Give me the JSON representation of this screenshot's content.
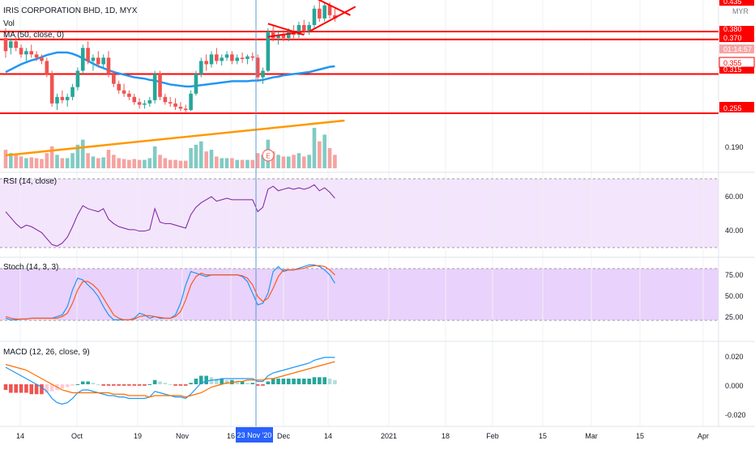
{
  "header": {
    "symbol": "IRIS CORPORATION BHD, 1D, MYX",
    "vol_label": "Vol",
    "ma_label": "MA (50, close, 0)",
    "rsi_label": "RSI (14, close)",
    "stoch_label": "Stoch (14, 3, 3)",
    "macd_label": "MACD (12, 26, close, 9)",
    "currency": "MYR"
  },
  "axis": {
    "price_labels": [
      "0.435",
      "0.380",
      "0.370",
      "01:14:57",
      "0.355",
      "0.315",
      "0.255",
      "0.190"
    ],
    "rsi_labels": [
      "60.00",
      "40.00"
    ],
    "stoch_labels": [
      "75.00",
      "50.00",
      "25.00"
    ],
    "macd_labels": [
      "0.020",
      "0.000",
      "-0.020"
    ],
    "time_labels": [
      "14",
      "Oct",
      "19",
      "Nov",
      "16",
      "Dec",
      "14",
      "2021",
      "18",
      "Feb",
      "15",
      "Mar",
      "15",
      "Apr"
    ],
    "crosshair_date": "23 Nov '20",
    "earnings_marker": "E"
  },
  "colors": {
    "up": "#26a69a",
    "down": "#ef5350",
    "vol_up": "#80cbc4",
    "vol_down": "#f5a3a1",
    "ma": "#2196f3",
    "trend": "#ff9800",
    "hline": "#ff0000",
    "rsi": "#7b1fa2",
    "stoch_k": "#2196f3",
    "stoch_d": "#ff5722",
    "crosshair": "#5b9bd5"
  },
  "chart_data": [
    {
      "type": "candlestick",
      "series": [
        {
          "name": "IRIS CORPORATION BHD",
          "ohlc": [
            [
              0.37,
              0.385,
              0.34,
              0.35
            ],
            [
              0.355,
              0.37,
              0.345,
              0.365
            ],
            [
              0.365,
              0.372,
              0.35,
              0.355
            ],
            [
              0.355,
              0.36,
              0.34,
              0.345
            ],
            [
              0.345,
              0.355,
              0.335,
              0.35
            ],
            [
              0.35,
              0.36,
              0.34,
              0.345
            ],
            [
              0.345,
              0.35,
              0.335,
              0.34
            ],
            [
              0.34,
              0.345,
              0.33,
              0.335
            ],
            [
              0.335,
              0.34,
              0.31,
              0.315
            ],
            [
              0.315,
              0.32,
              0.265,
              0.27
            ],
            [
              0.27,
              0.285,
              0.26,
              0.28
            ],
            [
              0.28,
              0.29,
              0.27,
              0.275
            ],
            [
              0.275,
              0.285,
              0.265,
              0.28
            ],
            [
              0.28,
              0.3,
              0.275,
              0.295
            ],
            [
              0.295,
              0.325,
              0.29,
              0.32
            ],
            [
              0.32,
              0.36,
              0.315,
              0.355
            ],
            [
              0.355,
              0.365,
              0.33,
              0.335
            ],
            [
              0.335,
              0.345,
              0.32,
              0.34
            ],
            [
              0.34,
              0.35,
              0.325,
              0.33
            ],
            [
              0.33,
              0.345,
              0.325,
              0.34
            ],
            [
              0.34,
              0.35,
              0.31,
              0.315
            ],
            [
              0.315,
              0.32,
              0.295,
              0.3
            ],
            [
              0.3,
              0.305,
              0.285,
              0.29
            ],
            [
              0.29,
              0.3,
              0.28,
              0.285
            ],
            [
              0.285,
              0.29,
              0.275,
              0.28
            ],
            [
              0.28,
              0.285,
              0.268,
              0.272
            ],
            [
              0.272,
              0.278,
              0.262,
              0.268
            ],
            [
              0.268,
              0.275,
              0.262,
              0.27
            ],
            [
              0.27,
              0.28,
              0.265,
              0.275
            ],
            [
              0.275,
              0.32,
              0.27,
              0.315
            ],
            [
              0.315,
              0.32,
              0.275,
              0.28
            ],
            [
              0.28,
              0.285,
              0.268,
              0.272
            ],
            [
              0.272,
              0.28,
              0.265,
              0.27
            ],
            [
              0.27,
              0.278,
              0.26,
              0.265
            ],
            [
              0.265,
              0.272,
              0.258,
              0.262
            ],
            [
              0.262,
              0.268,
              0.255,
              0.26
            ],
            [
              0.26,
              0.29,
              0.258,
              0.285
            ],
            [
              0.285,
              0.32,
              0.282,
              0.315
            ],
            [
              0.315,
              0.34,
              0.31,
              0.335
            ],
            [
              0.335,
              0.345,
              0.32,
              0.33
            ],
            [
              0.33,
              0.35,
              0.325,
              0.345
            ],
            [
              0.345,
              0.355,
              0.33,
              0.335
            ],
            [
              0.335,
              0.345,
              0.328,
              0.34
            ],
            [
              0.34,
              0.35,
              0.335,
              0.345
            ],
            [
              0.345,
              0.35,
              0.33,
              0.335
            ],
            [
              0.335,
              0.345,
              0.33,
              0.34
            ],
            [
              0.34,
              0.348,
              0.332,
              0.338
            ],
            [
              0.338,
              0.345,
              0.33,
              0.342
            ],
            [
              0.342,
              0.348,
              0.335,
              0.34
            ],
            [
              0.34,
              0.345,
              0.305,
              0.31
            ],
            [
              0.31,
              0.325,
              0.3,
              0.32
            ],
            [
              0.32,
              0.385,
              0.318,
              0.38
            ],
            [
              0.38,
              0.39,
              0.365,
              0.37
            ],
            [
              0.37,
              0.38,
              0.36,
              0.375
            ],
            [
              0.375,
              0.382,
              0.365,
              0.37
            ],
            [
              0.37,
              0.385,
              0.365,
              0.38
            ],
            [
              0.38,
              0.39,
              0.37,
              0.375
            ],
            [
              0.375,
              0.395,
              0.37,
              0.39
            ],
            [
              0.39,
              0.398,
              0.375,
              0.38
            ],
            [
              0.38,
              0.395,
              0.375,
              0.39
            ],
            [
              0.39,
              0.42,
              0.385,
              0.415
            ],
            [
              0.415,
              0.43,
              0.395,
              0.4
            ],
            [
              0.4,
              0.425,
              0.395,
              0.42
            ],
            [
              0.42,
              0.425,
              0.4,
              0.405
            ],
            [
              0.405,
              0.415,
              0.395,
              0.4
            ]
          ],
          "volume": [
            22,
            18,
            16,
            14,
            12,
            13,
            12,
            11,
            18,
            26,
            16,
            12,
            12,
            18,
            28,
            34,
            18,
            14,
            12,
            13,
            22,
            16,
            12,
            11,
            10,
            11,
            10,
            10,
            12,
            26,
            16,
            12,
            10,
            10,
            9,
            9,
            24,
            28,
            32,
            20,
            22,
            14,
            12,
            12,
            12,
            10,
            10,
            10,
            10,
            18,
            16,
            34,
            20,
            16,
            14,
            14,
            16,
            18,
            14,
            16,
            48,
            32,
            40,
            24,
            16
          ]
        },
        {
          "name": "MA (50, close, 0)",
          "values": [
            0.318,
            0.322,
            0.326,
            0.33,
            0.333,
            0.336,
            0.338,
            0.341,
            0.344,
            0.346,
            0.348,
            0.348,
            0.348,
            0.346,
            0.343,
            0.339,
            0.335,
            0.331,
            0.327,
            0.324,
            0.321,
            0.318,
            0.316,
            0.314,
            0.312,
            0.31,
            0.309,
            0.308,
            0.306,
            0.305,
            0.303,
            0.301,
            0.299,
            0.298,
            0.297,
            0.296,
            0.296,
            0.297,
            0.298,
            0.299,
            0.3,
            0.301,
            0.302,
            0.303,
            0.304,
            0.304,
            0.304,
            0.304,
            0.305,
            0.305,
            0.306,
            0.308,
            0.31,
            0.311,
            0.313,
            0.314,
            0.315,
            0.316,
            0.317,
            0.318,
            0.32,
            0.322,
            0.324,
            0.326,
            0.327
          ]
        }
      ],
      "hlines": [
        0.38,
        0.368,
        0.315,
        0.255
      ],
      "trendlines": [
        {
          "from": [
            51,
            0.372
          ],
          "to": [
            58,
            0.38
          ]
        },
        {
          "from": [
            51,
            0.392
          ],
          "to": [
            58,
            0.375
          ]
        },
        {
          "from": [
            60,
            0.432
          ],
          "to": [
            67,
            0.405
          ]
        },
        {
          "from": [
            59,
            0.38
          ],
          "to": [
            68,
            0.418
          ]
        }
      ],
      "volume_trend": {
        "from": [
          0,
          0.5
        ],
        "to": [
          64,
          1.0
        ]
      }
    },
    {
      "type": "line",
      "title": "RSI (14, close)",
      "ylim": [
        28,
        74
      ],
      "band": [
        30,
        70
      ],
      "values": [
        52,
        48,
        44,
        41,
        43,
        42,
        40,
        38,
        34,
        30,
        29,
        31,
        35,
        42,
        50,
        56,
        54,
        53,
        52,
        54,
        47,
        44,
        42,
        41,
        40,
        40,
        39,
        39,
        40,
        54,
        45,
        44,
        44,
        43,
        42,
        41,
        50,
        55,
        58,
        60,
        62,
        59,
        60,
        61,
        60,
        60,
        60,
        60,
        60,
        52,
        55,
        67,
        69,
        66,
        67,
        68,
        67,
        68,
        67,
        68,
        70,
        66,
        68,
        65,
        61
      ]
    },
    {
      "type": "line",
      "title": "Stoch (14, 3, 3)",
      "ylim": [
        0,
        100
      ],
      "band": [
        20,
        80
      ],
      "series": [
        {
          "name": "%K",
          "values": [
            22,
            20,
            20,
            21,
            21,
            22,
            22,
            22,
            22,
            22,
            24,
            26,
            36,
            56,
            70,
            68,
            62,
            56,
            48,
            36,
            26,
            20,
            20,
            20,
            20,
            22,
            28,
            26,
            22,
            24,
            22,
            22,
            22,
            26,
            40,
            62,
            78,
            76,
            74,
            72,
            74,
            74,
            74,
            74,
            74,
            74,
            72,
            66,
            52,
            38,
            40,
            52,
            78,
            84,
            78,
            80,
            80,
            82,
            84,
            86,
            86,
            84,
            80,
            74,
            64
          ]
        },
        {
          "name": "%D",
          "values": [
            24,
            22,
            21,
            21,
            21,
            22,
            22,
            22,
            22,
            22,
            22,
            24,
            28,
            40,
            56,
            66,
            66,
            62,
            56,
            46,
            36,
            26,
            22,
            20,
            20,
            21,
            24,
            25,
            25,
            24,
            23,
            22,
            22,
            24,
            30,
            44,
            62,
            72,
            76,
            74,
            74,
            74,
            74,
            74,
            74,
            74,
            73,
            70,
            62,
            48,
            42,
            46,
            58,
            72,
            80,
            80,
            80,
            81,
            82,
            84,
            85,
            85,
            84,
            80,
            74
          ]
        }
      ]
    },
    {
      "type": "line",
      "title": "MACD (12, 26, close, 9)",
      "ylim": [
        -0.025,
        0.025
      ],
      "series": [
        {
          "name": "MACD",
          "values": [
            0.012,
            0.01,
            0.008,
            0.006,
            0.004,
            0.002,
            0.0,
            -0.002,
            -0.005,
            -0.01,
            -0.013,
            -0.014,
            -0.013,
            -0.01,
            -0.006,
            -0.004,
            -0.004,
            -0.005,
            -0.006,
            -0.007,
            -0.008,
            -0.008,
            -0.009,
            -0.009,
            -0.01,
            -0.01,
            -0.01,
            -0.01,
            -0.009,
            -0.005,
            -0.006,
            -0.007,
            -0.008,
            -0.009,
            -0.009,
            -0.01,
            -0.007,
            -0.003,
            0.001,
            0.002,
            0.003,
            0.003,
            0.004,
            0.004,
            0.004,
            0.004,
            0.004,
            0.004,
            0.004,
            0.002,
            0.002,
            0.006,
            0.008,
            0.009,
            0.01,
            0.011,
            0.012,
            0.013,
            0.014,
            0.015,
            0.017,
            0.018,
            0.019,
            0.019,
            0.019
          ]
        },
        {
          "name": "Signal",
          "values": [
            0.014,
            0.013,
            0.012,
            0.011,
            0.01,
            0.008,
            0.006,
            0.004,
            0.002,
            0.0,
            -0.002,
            -0.004,
            -0.005,
            -0.006,
            -0.006,
            -0.006,
            -0.006,
            -0.006,
            -0.006,
            -0.006,
            -0.006,
            -0.007,
            -0.007,
            -0.007,
            -0.008,
            -0.008,
            -0.008,
            -0.008,
            -0.009,
            -0.008,
            -0.008,
            -0.008,
            -0.008,
            -0.008,
            -0.008,
            -0.009,
            -0.008,
            -0.007,
            -0.006,
            -0.004,
            -0.002,
            -0.001,
            0.0,
            0.001,
            0.001,
            0.002,
            0.002,
            0.003,
            0.003,
            0.003,
            0.003,
            0.004,
            0.004,
            0.005,
            0.006,
            0.007,
            0.008,
            0.009,
            0.01,
            0.011,
            0.012,
            0.013,
            0.014,
            0.015,
            0.016
          ]
        },
        {
          "name": "Histogram",
          "values": [
            -0.004,
            -0.006,
            -0.006,
            -0.006,
            -0.006,
            -0.007,
            -0.007,
            -0.007,
            -0.006,
            -0.005,
            -0.004,
            -0.003,
            -0.002,
            -0.001,
            0.0,
            0.002,
            0.002,
            0.001,
            0.0,
            -0.001,
            -0.001,
            -0.001,
            -0.001,
            -0.001,
            -0.001,
            -0.001,
            -0.001,
            -0.001,
            0.0,
            0.003,
            0.002,
            0.001,
            0.0,
            -0.001,
            -0.001,
            -0.001,
            0.001,
            0.004,
            0.006,
            0.006,
            0.005,
            0.004,
            0.004,
            0.003,
            0.003,
            0.002,
            0.002,
            0.001,
            0.001,
            -0.001,
            -0.001,
            0.002,
            0.004,
            0.004,
            0.004,
            0.004,
            0.004,
            0.004,
            0.004,
            0.004,
            0.005,
            0.005,
            0.005,
            0.004,
            0.003
          ]
        }
      ]
    }
  ]
}
